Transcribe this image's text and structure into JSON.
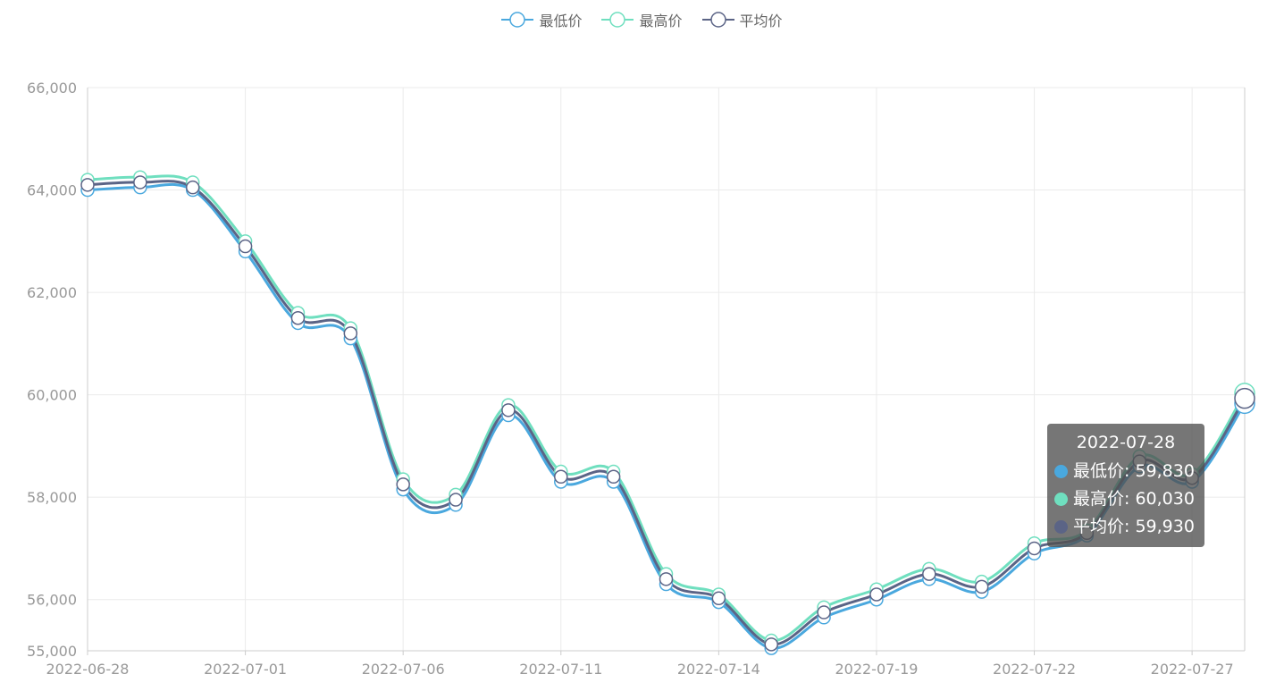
{
  "colors": {
    "low": "#4aa8de",
    "high": "#6fdfbf",
    "avg": "#5b6486",
    "grid": "#ebebeb",
    "axis_text": "#999999"
  },
  "legend": [
    {
      "key": "low",
      "label": "最低价"
    },
    {
      "key": "high",
      "label": "最高价"
    },
    {
      "key": "avg",
      "label": "平均价"
    }
  ],
  "tooltip": {
    "date": "2022-07-28",
    "rows": [
      {
        "key": "low",
        "label": "最低价: 59,830"
      },
      {
        "key": "high",
        "label": "最高价: 60,030"
      },
      {
        "key": "avg",
        "label": "平均价: 59,930"
      }
    ]
  },
  "chart_data": {
    "type": "line",
    "title": "",
    "xlabel": "",
    "ylabel": "",
    "legend_position": "top-center",
    "grid": true,
    "smooth": true,
    "x": [
      "2022-06-28",
      "2022-06-29",
      "2022-06-30",
      "2022-07-01",
      "2022-07-04",
      "2022-07-05",
      "2022-07-06",
      "2022-07-07",
      "2022-07-08",
      "2022-07-11",
      "2022-07-12",
      "2022-07-13",
      "2022-07-14",
      "2022-07-15",
      "2022-07-18",
      "2022-07-19",
      "2022-07-20",
      "2022-07-21",
      "2022-07-22",
      "2022-07-25",
      "2022-07-26",
      "2022-07-27",
      "2022-07-28"
    ],
    "x_tick_labels": [
      "2022-06-28",
      "2022-07-01",
      "2022-07-06",
      "2022-07-11",
      "2022-07-14",
      "2022-07-19",
      "2022-07-22",
      "2022-07-27"
    ],
    "x_tick_indices": [
      0,
      3,
      6,
      9,
      12,
      15,
      18,
      21
    ],
    "y_tick_values": [
      55000,
      56000,
      58000,
      60000,
      62000,
      64000,
      66000
    ],
    "y_tick_labels": [
      "55,000",
      "56,000",
      "58,000",
      "60,000",
      "62,000",
      "64,000",
      "66,000"
    ],
    "ylim": [
      55000,
      66000
    ],
    "series": [
      {
        "key": "low",
        "name": "最低价",
        "values": [
          64000,
          64050,
          64000,
          62800,
          61400,
          61100,
          58150,
          57850,
          59600,
          58300,
          58300,
          56300,
          55950,
          55050,
          55650,
          56000,
          56400,
          56150,
          56900,
          57250,
          58600,
          58300,
          59830
        ]
      },
      {
        "key": "high",
        "name": "最高价",
        "values": [
          64200,
          64250,
          64150,
          63000,
          61600,
          61300,
          58350,
          58050,
          59800,
          58500,
          58500,
          56500,
          56100,
          55200,
          55850,
          56200,
          56600,
          56350,
          57100,
          57350,
          58800,
          58450,
          60030
        ]
      },
      {
        "key": "avg",
        "name": "平均价",
        "values": [
          64100,
          64150,
          64050,
          62900,
          61500,
          61200,
          58250,
          57950,
          59700,
          58400,
          58400,
          56400,
          56025,
          55125,
          55750,
          56100,
          56500,
          56250,
          57000,
          57300,
          58700,
          58375,
          59930
        ]
      }
    ]
  }
}
